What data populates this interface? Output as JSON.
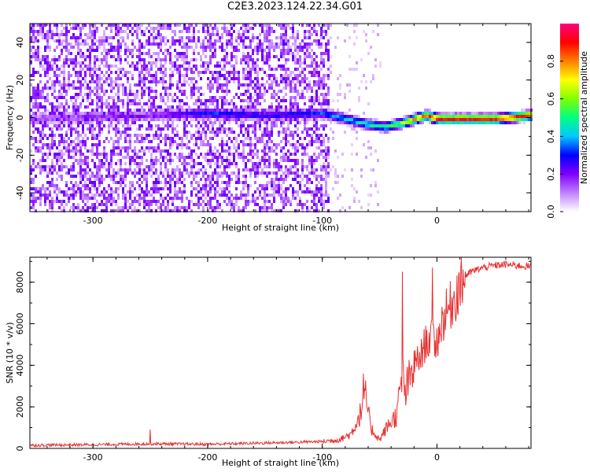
{
  "title": "C2E3.2023.124.22.34.G01",
  "chart_data": [
    {
      "type": "heatmap",
      "xlabel": "Height of straight line (km)",
      "ylabel": "Frequency (Hz)",
      "xlim": [
        -355,
        82
      ],
      "ylim": [
        -50,
        50
      ],
      "xticks": [
        -300,
        -200,
        -100,
        0
      ],
      "yticks": [
        -40,
        -20,
        0,
        20,
        40
      ],
      "colorbar": {
        "label": "Normalized spectral amplitude",
        "range": [
          0,
          1
        ],
        "ticks": [
          "0.0",
          "0.2",
          "0.4",
          "0.6",
          "0.8"
        ],
        "colormap": [
          "#ffffff",
          "#c080ff",
          "#8000ff",
          "#0000ff",
          "#00c8ff",
          "#00ff80",
          "#80ff00",
          "#ffff00",
          "#ff8000",
          "#ff0000",
          "#ff0080"
        ]
      },
      "noise_region": {
        "x_range": [
          -355,
          -95
        ],
        "density": "high"
      },
      "signal_trace": [
        {
          "x": -355,
          "f": 0,
          "amp": 0.15
        },
        {
          "x": -250,
          "f": 2,
          "amp": 0.2
        },
        {
          "x": -200,
          "f": 3,
          "amp": 0.35
        },
        {
          "x": -150,
          "f": 2,
          "amp": 0.3
        },
        {
          "x": -100,
          "f": 3,
          "amp": 0.35
        },
        {
          "x": -80,
          "f": 0,
          "amp": 0.45
        },
        {
          "x": -60,
          "f": -3,
          "amp": 0.5
        },
        {
          "x": -45,
          "f": -4,
          "amp": 0.55
        },
        {
          "x": -30,
          "f": -2,
          "amp": 0.7
        },
        {
          "x": -20,
          "f": 0,
          "amp": 0.85
        },
        {
          "x": -10,
          "f": 2,
          "amp": 0.9
        },
        {
          "x": 0,
          "f": 0,
          "amp": 0.95
        },
        {
          "x": 50,
          "f": 0,
          "amp": 0.95
        },
        {
          "x": 82,
          "f": 2,
          "amp": 0.95
        }
      ]
    },
    {
      "type": "line",
      "xlabel": "Height of straight line (km)",
      "ylabel": "SNR (10 * v/v)",
      "xlim": [
        -355,
        82
      ],
      "ylim": [
        0,
        9200
      ],
      "xticks": [
        -300,
        -200,
        -100,
        0
      ],
      "yticks": [
        0,
        2000,
        4000,
        6000,
        8000
      ],
      "color": "#e83030",
      "series": [
        {
          "x": [
            -355,
            -300,
            -250,
            -200,
            -150,
            -120,
            -100,
            -85,
            -75,
            -68,
            -62,
            -58,
            -54,
            -50,
            -45,
            -40,
            -35,
            -32,
            -30,
            -28,
            -25,
            -22,
            -20,
            -15,
            -10,
            -5,
            0,
            5,
            10,
            15,
            20,
            25,
            30,
            40,
            50,
            60,
            70,
            82
          ],
          "values": [
            150,
            180,
            220,
            200,
            260,
            300,
            330,
            420,
            700,
            1500,
            2500,
            1000,
            700,
            400,
            900,
            1300,
            1600,
            2800,
            3500,
            2600,
            3100,
            3600,
            4100,
            4300,
            5100,
            5300,
            5100,
            6200,
            6700,
            7200,
            7900,
            8300,
            8500,
            8700,
            8800,
            8850,
            8800,
            8750
          ]
        }
      ],
      "spikes": [
        {
          "x": -30,
          "value": 8500
        },
        {
          "x": -4,
          "value": 8700
        },
        {
          "x": -64,
          "value": 3600
        },
        {
          "x": -250,
          "value": 900
        }
      ]
    }
  ]
}
